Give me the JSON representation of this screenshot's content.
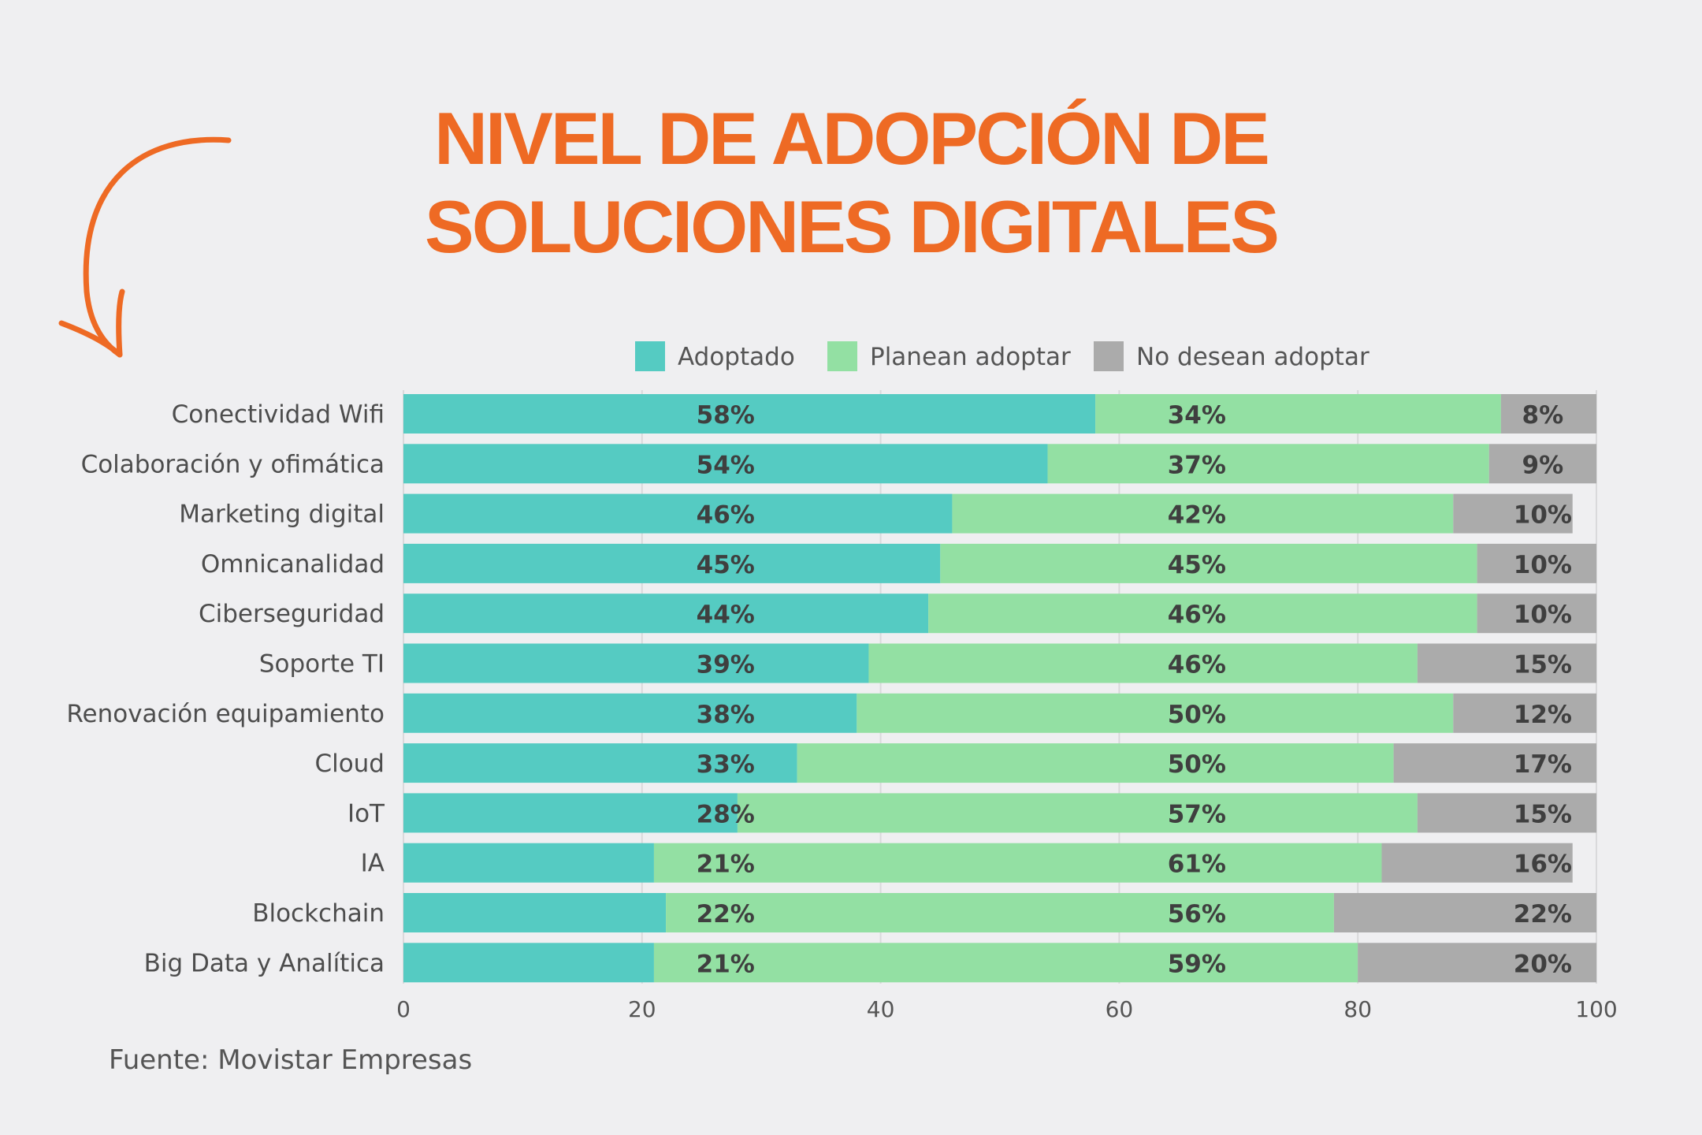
{
  "title": "NIVEL DE ADOPCIÓN DE SOLUCIONES DIGITALES",
  "source": "Fuente: Movistar Empresas",
  "colors": {
    "title": "#ee6a24",
    "adoptado": "#55cbc2",
    "planean": "#93e0a3",
    "no_desean": "#ababab",
    "label_text": "#4d4d4d",
    "value_text": "#3f3f3f"
  },
  "chart_data": {
    "type": "bar",
    "orientation": "horizontal",
    "stacked": true,
    "categories": [
      "Conectividad Wifi",
      "Colaboración y ofimática",
      "Marketing digital",
      "Omnicanalidad",
      "Ciberseguridad",
      "Soporte TI",
      "Renovación equipamiento",
      "Cloud",
      "IoT",
      "IA",
      "Blockchain",
      "Big Data y Analítica"
    ],
    "series": [
      {
        "name": "Adoptado",
        "values": [
          58,
          54,
          46,
          45,
          44,
          39,
          38,
          33,
          28,
          21,
          22,
          21
        ]
      },
      {
        "name": "Planean adoptar",
        "values": [
          34,
          37,
          42,
          45,
          46,
          46,
          50,
          50,
          57,
          61,
          56,
          59
        ]
      },
      {
        "name": "No desean adoptar",
        "values": [
          8,
          9,
          10,
          10,
          10,
          15,
          12,
          17,
          15,
          16,
          22,
          20
        ]
      }
    ],
    "data_labels": [
      [
        "58%",
        "34%",
        "8%"
      ],
      [
        "54%",
        "37%",
        "9%"
      ],
      [
        "46%",
        "42%",
        "10%"
      ],
      [
        "45%",
        "45%",
        "10%"
      ],
      [
        "44%",
        "46%",
        "10%"
      ],
      [
        "39%",
        "46%",
        "15%"
      ],
      [
        "38%",
        "50%",
        "12%"
      ],
      [
        "33%",
        "50%",
        "17%"
      ],
      [
        "28%",
        "57%",
        "15%"
      ],
      [
        "21%",
        "61%",
        "16%"
      ],
      [
        "22%",
        "56%",
        "22%"
      ],
      [
        "21%",
        "59%",
        "20%"
      ]
    ],
    "xlim": [
      0,
      100
    ],
    "xticks": [
      "0",
      "20",
      "40",
      "60",
      "80",
      "100"
    ],
    "grid": true,
    "legend": "top"
  }
}
